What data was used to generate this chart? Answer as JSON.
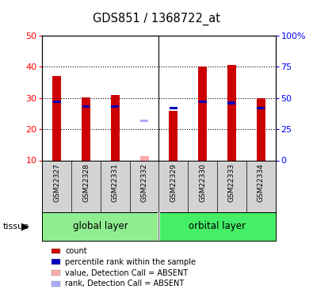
{
  "title": "GDS851 / 1368722_at",
  "samples": [
    "GSM22327",
    "GSM22328",
    "GSM22331",
    "GSM22332",
    "GSM22329",
    "GSM22330",
    "GSM22333",
    "GSM22334"
  ],
  "red_values": [
    37,
    30.3,
    31,
    11.5,
    25.8,
    40.2,
    40.5,
    30
  ],
  "blue_pct": [
    47,
    43,
    43,
    32,
    42,
    47,
    46,
    42
  ],
  "absent_mask": [
    false,
    false,
    false,
    true,
    false,
    false,
    false,
    false
  ],
  "ylim_left": [
    10,
    50
  ],
  "ylim_right": [
    0,
    100
  ],
  "left_ticks": [
    10,
    20,
    30,
    40,
    50
  ],
  "right_ticks": [
    0,
    25,
    50,
    75,
    100
  ],
  "right_tick_labels": [
    "0",
    "25",
    "50",
    "75",
    "100%"
  ],
  "group_boundaries": [
    {
      "start": 0,
      "end": 3,
      "label": "global layer",
      "color": "#90ee90"
    },
    {
      "start": 4,
      "end": 7,
      "label": "orbital layer",
      "color": "#44ee66"
    }
  ],
  "bar_width": 0.3,
  "red_color": "#cc0000",
  "blue_color": "#0000bb",
  "pink_color": "#ffaaaa",
  "lavender_color": "#aaaaff",
  "legend_items": [
    {
      "color": "#cc0000",
      "label": "count"
    },
    {
      "color": "#0000bb",
      "label": "percentile rank within the sample"
    },
    {
      "color": "#ffaaaa",
      "label": "value, Detection Call = ABSENT"
    },
    {
      "color": "#aaaaff",
      "label": "rank, Detection Call = ABSENT"
    }
  ]
}
